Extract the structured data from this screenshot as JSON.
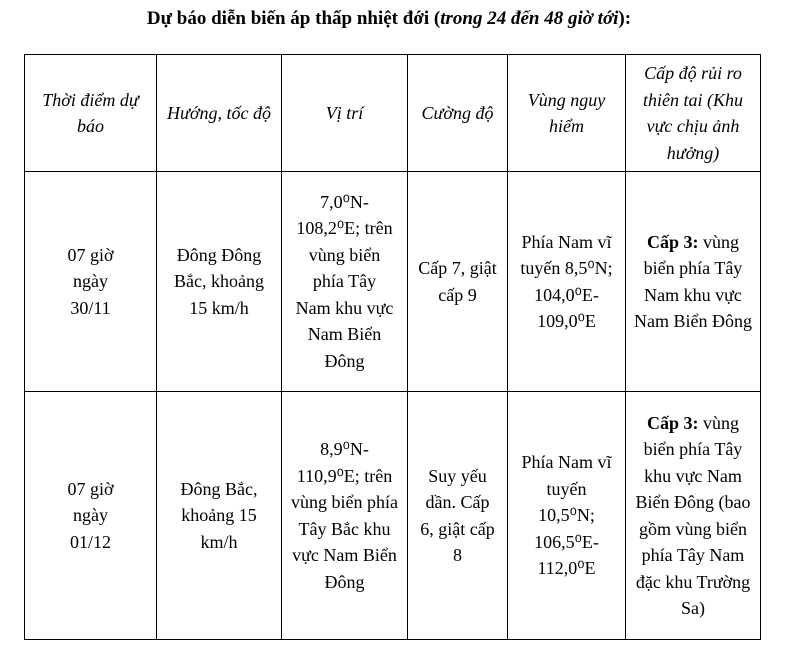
{
  "title": {
    "bold": "Dự báo diễn biến áp thấp nhiệt đới (",
    "italic": "trong 24 đến 48 giờ tới",
    "end": "):"
  },
  "headers": [
    "Thời điểm dự báo",
    "Hướng, tốc độ",
    "Vị trí",
    "Cường độ",
    "Vùng nguy hiểm",
    "Cấp độ rủi ro thiên tai (Khu vực chịu ảnh hưởng)"
  ],
  "rows": [
    {
      "time": "07 giờ ngày 30/11",
      "direction": "Đông Đông Bắc, khoảng 15 km/h",
      "position": "7,0⁰N-108,2⁰E; trên vùng biển phía Tây Nam khu vực Nam Biển Đông",
      "intensity": "Cấp 7, giật cấp 9",
      "danger_zone": "Phía Nam vĩ tuyến 8,5⁰N; 104,0⁰E-109,0⁰E",
      "risk_level": "Cấp 3:",
      "risk_area": " vùng biển phía Tây Nam khu vực Nam Biển Đông"
    },
    {
      "time": "07 giờ ngày 01/12",
      "direction": "Đông Bắc, khoảng 15 km/h",
      "position": "8,9⁰N-110,9⁰E; trên vùng biển phía Tây Bắc khu vực Nam Biển Đông",
      "intensity": "Suy yếu dần. Cấp 6, giật cấp 8",
      "danger_zone": "Phía Nam vĩ tuyến 10,5⁰N; 106,5⁰E-112,0⁰E",
      "risk_level": "Cấp 3:",
      "risk_area": " vùng biển phía Tây khu vực Nam Biển Đông (bao gồm vùng biển phía Tây Nam đặc khu Trường Sa)"
    }
  ]
}
